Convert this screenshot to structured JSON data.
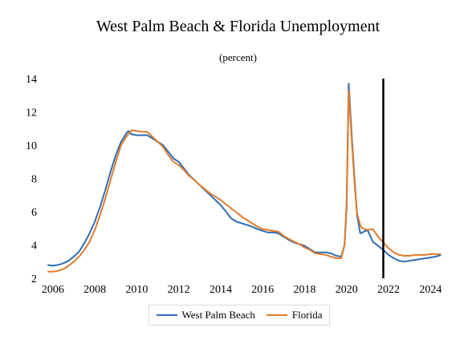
{
  "chart_data": {
    "type": "line",
    "title": "West Palm Beach & Florida Unemployment",
    "subtitle": "(percent)",
    "xlabel": "",
    "ylabel": "",
    "xlim": [
      2005.7,
      2024.6
    ],
    "ylim": [
      2,
      14
    ],
    "x_ticks": [
      2006,
      2008,
      2010,
      2012,
      2014,
      2016,
      2018,
      2020,
      2022,
      2024
    ],
    "y_ticks": [
      2,
      4,
      6,
      8,
      10,
      12,
      14
    ],
    "vertical_marker_x": 2021.75,
    "legend_position": "bottom",
    "series": [
      {
        "name": "West Palm Beach",
        "color": "#2e6db5",
        "points": [
          [
            2005.75,
            2.8
          ],
          [
            2006.0,
            2.75
          ],
          [
            2006.25,
            2.8
          ],
          [
            2006.5,
            2.9
          ],
          [
            2006.75,
            3.05
          ],
          [
            2007.0,
            3.3
          ],
          [
            2007.25,
            3.6
          ],
          [
            2007.5,
            4.1
          ],
          [
            2007.75,
            4.7
          ],
          [
            2008.0,
            5.4
          ],
          [
            2008.25,
            6.3
          ],
          [
            2008.5,
            7.3
          ],
          [
            2008.75,
            8.4
          ],
          [
            2009.0,
            9.4
          ],
          [
            2009.25,
            10.2
          ],
          [
            2009.5,
            10.7
          ],
          [
            2009.6,
            10.85
          ],
          [
            2009.75,
            10.65
          ],
          [
            2010.0,
            10.6
          ],
          [
            2010.25,
            10.6
          ],
          [
            2010.5,
            10.6
          ],
          [
            2010.75,
            10.4
          ],
          [
            2011.0,
            10.2
          ],
          [
            2011.25,
            10.0
          ],
          [
            2011.5,
            9.6
          ],
          [
            2011.75,
            9.2
          ],
          [
            2012.0,
            9.0
          ],
          [
            2012.25,
            8.6
          ],
          [
            2012.5,
            8.2
          ],
          [
            2012.75,
            7.9
          ],
          [
            2013.0,
            7.6
          ],
          [
            2013.25,
            7.3
          ],
          [
            2013.5,
            7.0
          ],
          [
            2013.75,
            6.7
          ],
          [
            2014.0,
            6.4
          ],
          [
            2014.25,
            6.0
          ],
          [
            2014.5,
            5.6
          ],
          [
            2014.75,
            5.4
          ],
          [
            2015.0,
            5.3
          ],
          [
            2015.25,
            5.2
          ],
          [
            2015.5,
            5.1
          ],
          [
            2015.75,
            4.95
          ],
          [
            2016.0,
            4.85
          ],
          [
            2016.25,
            4.75
          ],
          [
            2016.5,
            4.75
          ],
          [
            2016.75,
            4.7
          ],
          [
            2017.0,
            4.5
          ],
          [
            2017.25,
            4.3
          ],
          [
            2017.5,
            4.15
          ],
          [
            2017.75,
            4.05
          ],
          [
            2018.0,
            3.95
          ],
          [
            2018.25,
            3.75
          ],
          [
            2018.5,
            3.55
          ],
          [
            2018.75,
            3.55
          ],
          [
            2019.0,
            3.55
          ],
          [
            2019.25,
            3.5
          ],
          [
            2019.5,
            3.35
          ],
          [
            2019.75,
            3.3
          ],
          [
            2019.9,
            4.0
          ],
          [
            2020.0,
            6.2
          ],
          [
            2020.1,
            13.7
          ],
          [
            2020.25,
            10.5
          ],
          [
            2020.4,
            7.6
          ],
          [
            2020.5,
            5.8
          ],
          [
            2020.65,
            4.7
          ],
          [
            2020.75,
            4.75
          ],
          [
            2021.0,
            4.9
          ],
          [
            2021.25,
            4.2
          ],
          [
            2021.5,
            3.95
          ],
          [
            2021.75,
            3.7
          ],
          [
            2022.0,
            3.4
          ],
          [
            2022.25,
            3.2
          ],
          [
            2022.5,
            3.05
          ],
          [
            2022.75,
            3.0
          ],
          [
            2023.0,
            3.05
          ],
          [
            2023.25,
            3.1
          ],
          [
            2023.5,
            3.15
          ],
          [
            2023.75,
            3.2
          ],
          [
            2024.0,
            3.25
          ],
          [
            2024.25,
            3.3
          ],
          [
            2024.5,
            3.4
          ]
        ]
      },
      {
        "name": "Florida",
        "color": "#e07b2a",
        "points": [
          [
            2005.75,
            2.4
          ],
          [
            2006.0,
            2.4
          ],
          [
            2006.25,
            2.45
          ],
          [
            2006.5,
            2.55
          ],
          [
            2006.75,
            2.75
          ],
          [
            2007.0,
            3.0
          ],
          [
            2007.25,
            3.3
          ],
          [
            2007.5,
            3.7
          ],
          [
            2007.75,
            4.2
          ],
          [
            2008.0,
            4.9
          ],
          [
            2008.25,
            5.8
          ],
          [
            2008.5,
            6.8
          ],
          [
            2008.75,
            7.9
          ],
          [
            2009.0,
            9.0
          ],
          [
            2009.25,
            10.0
          ],
          [
            2009.5,
            10.5
          ],
          [
            2009.75,
            10.9
          ],
          [
            2010.0,
            10.85
          ],
          [
            2010.25,
            10.8
          ],
          [
            2010.5,
            10.8
          ],
          [
            2010.75,
            10.5
          ],
          [
            2011.0,
            10.2
          ],
          [
            2011.25,
            9.9
          ],
          [
            2011.5,
            9.4
          ],
          [
            2011.75,
            9.0
          ],
          [
            2012.0,
            8.8
          ],
          [
            2012.25,
            8.5
          ],
          [
            2012.5,
            8.15
          ],
          [
            2012.75,
            7.9
          ],
          [
            2013.0,
            7.6
          ],
          [
            2013.25,
            7.35
          ],
          [
            2013.5,
            7.1
          ],
          [
            2013.75,
            6.9
          ],
          [
            2014.0,
            6.7
          ],
          [
            2014.25,
            6.45
          ],
          [
            2014.5,
            6.2
          ],
          [
            2014.75,
            5.95
          ],
          [
            2015.0,
            5.7
          ],
          [
            2015.25,
            5.5
          ],
          [
            2015.5,
            5.3
          ],
          [
            2015.75,
            5.1
          ],
          [
            2016.0,
            4.95
          ],
          [
            2016.25,
            4.9
          ],
          [
            2016.5,
            4.85
          ],
          [
            2016.75,
            4.8
          ],
          [
            2017.0,
            4.55
          ],
          [
            2017.25,
            4.35
          ],
          [
            2017.5,
            4.2
          ],
          [
            2017.75,
            4.05
          ],
          [
            2018.0,
            3.85
          ],
          [
            2018.25,
            3.7
          ],
          [
            2018.5,
            3.5
          ],
          [
            2018.75,
            3.45
          ],
          [
            2019.0,
            3.4
          ],
          [
            2019.25,
            3.3
          ],
          [
            2019.5,
            3.2
          ],
          [
            2019.75,
            3.2
          ],
          [
            2019.9,
            4.0
          ],
          [
            2020.0,
            6.5
          ],
          [
            2020.1,
            13.3
          ],
          [
            2020.25,
            10.2
          ],
          [
            2020.4,
            7.4
          ],
          [
            2020.5,
            5.9
          ],
          [
            2020.65,
            5.2
          ],
          [
            2020.75,
            5.0
          ],
          [
            2021.0,
            4.9
          ],
          [
            2021.25,
            4.95
          ],
          [
            2021.5,
            4.5
          ],
          [
            2021.75,
            4.15
          ],
          [
            2022.0,
            3.8
          ],
          [
            2022.25,
            3.55
          ],
          [
            2022.5,
            3.4
          ],
          [
            2022.75,
            3.35
          ],
          [
            2023.0,
            3.35
          ],
          [
            2023.25,
            3.4
          ],
          [
            2023.5,
            3.4
          ],
          [
            2023.75,
            3.4
          ],
          [
            2024.0,
            3.45
          ],
          [
            2024.25,
            3.45
          ],
          [
            2024.5,
            3.45
          ]
        ]
      }
    ]
  }
}
